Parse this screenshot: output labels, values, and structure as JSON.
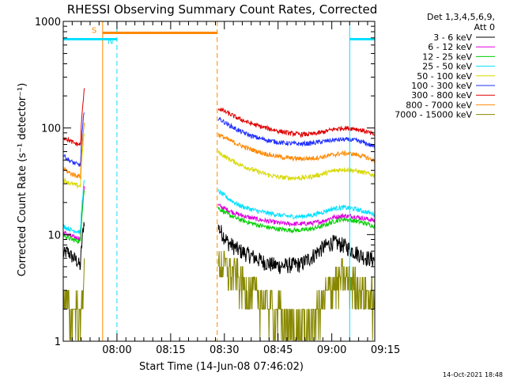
{
  "chart_data": {
    "type": "line",
    "title": "RHESSI Observing Summary Count Rates, Corrected",
    "ylabel": "Corrected Count Rate (s⁻¹ detector⁻¹)",
    "xlabel": "Start Time (14-Jun-08 07:46:02)",
    "footer": "14-Oct-2021 18:48",
    "yscale": "log",
    "ylim": [
      1,
      1000
    ],
    "y_ticks": [
      {
        "value": 1,
        "label": "1"
      },
      {
        "value": 10,
        "label": "10"
      },
      {
        "value": 100,
        "label": "100"
      },
      {
        "value": 1000,
        "label": "1000"
      }
    ],
    "xlim_min": [
      -7,
      80
    ],
    "x_ticks": [
      {
        "value": 8,
        "label": "08:00"
      },
      {
        "value": 23,
        "label": "08:15"
      },
      {
        "value": 38,
        "label": "08:30"
      },
      {
        "value": 53,
        "label": "08:45"
      },
      {
        "value": 68,
        "label": "09:00"
      },
      {
        "value": 83,
        "label": "09:15"
      }
    ],
    "legend_header": [
      "Det 1,3,4,5,6,9,",
      "Att 0"
    ],
    "series": [
      {
        "name": "3 - 6 keV",
        "color": "#000000",
        "pre": [
          6.5,
          7.0,
          6.2,
          5.8,
          5.0,
          4.6
        ],
        "post": [
          12,
          8.5,
          7.2,
          6.5,
          5.8,
          5.3,
          5.1,
          5.2,
          5.3,
          6.2,
          7.5,
          8.5,
          8.0,
          7.0,
          6.2,
          5.8
        ]
      },
      {
        "name": "6 - 12 keV",
        "color": "#e000e0",
        "pre": [
          10.5,
          10.0,
          9.6,
          9.4,
          9.2,
          9.5
        ],
        "post": [
          19,
          17,
          15.5,
          14.5,
          13.8,
          13.3,
          12.8,
          12.6,
          12.6,
          12.8,
          13.3,
          14.5,
          15,
          14.8,
          14.2,
          13.5
        ]
      },
      {
        "name": "12 - 25 keV",
        "color": "#00d000",
        "pre": [
          10.0,
          9.4,
          9.0,
          8.8,
          8.6,
          9.0
        ],
        "post": [
          18,
          15.5,
          14,
          13,
          12.2,
          11.6,
          11.2,
          11.0,
          11.0,
          11.3,
          12,
          13.2,
          14.0,
          13.5,
          12.8,
          12.0
        ]
      },
      {
        "name": "25 - 50 keV",
        "color": "#00e0ff",
        "pre": [
          12.0,
          11.5,
          11.0,
          10.8,
          10.6,
          11.0
        ],
        "post": [
          26,
          22,
          19,
          17.5,
          16.5,
          15.8,
          15.2,
          14.8,
          14.8,
          15.2,
          16.2,
          17.5,
          18.0,
          17.5,
          16.5,
          15.5
        ]
      },
      {
        "name": "50 - 100 keV",
        "color": "#d8d800",
        "pre": [
          33,
          31,
          30,
          29,
          28.5,
          31
        ],
        "post": [
          60,
          52,
          46,
          42,
          38.5,
          36,
          34.5,
          34,
          34,
          35,
          37,
          39.5,
          41,
          40,
          38,
          36
        ]
      },
      {
        "name": "100 - 300 keV",
        "color": "#2030ff",
        "pre": [
          56,
          51,
          48,
          46,
          45,
          50
        ],
        "post": [
          125,
          108,
          95,
          86,
          80,
          76,
          73,
          71.5,
          71,
          72,
          74.5,
          77,
          78,
          77,
          73,
          66
        ]
      },
      {
        "name": "300 - 800 keV",
        "color": "#e00000",
        "pre": [
          82,
          78,
          74,
          71,
          70,
          78
        ],
        "post": [
          155,
          138,
          123,
          112,
          104,
          98,
          93,
          89,
          87,
          87.5,
          91,
          97,
          100,
          99,
          94,
          86
        ]
      },
      {
        "name": "800 - 7000 keV",
        "color": "#ff8800",
        "pre": [
          42,
          39,
          37,
          36,
          35,
          39
        ],
        "post": [
          88,
          78,
          70,
          64,
          59.5,
          56,
          53.5,
          52,
          51.5,
          52,
          53.5,
          56,
          58,
          57,
          54,
          49
        ]
      },
      {
        "name": "7000 - 15000 keV",
        "color": "#888800",
        "pre": [
          2.5,
          1.9,
          1.7,
          1.9,
          1.5,
          1.4
        ],
        "post": [
          5.5,
          4.8,
          4.0,
          3.0,
          2.6,
          2.2,
          1.8,
          1.4,
          1.3,
          1.5,
          2.2,
          3.5,
          4.0,
          3.6,
          3.0,
          2.4
        ]
      }
    ],
    "gaps_min": [
      [
        -1,
        36
      ]
    ],
    "segment_bars": [
      {
        "label": "",
        "color": "#00e0ff",
        "start": -7,
        "end": 4,
        "y": 680
      },
      {
        "label": "S",
        "color": "#ff8800",
        "start": 4,
        "end": 36,
        "y": 780
      },
      {
        "label": "N",
        "color": "#00e0ff",
        "start": 4,
        "end": 8,
        "y": 680
      },
      {
        "label": "",
        "color": "#00e0ff",
        "start": 73,
        "end": 80,
        "y": 680
      }
    ],
    "vlines": [
      {
        "at": -7,
        "color": "#00e0ff",
        "dash": false
      },
      {
        "at": 4,
        "color": "#ff8800",
        "dash": false
      },
      {
        "at": 8,
        "color": "#00e0ff",
        "dash": true
      },
      {
        "at": 36,
        "color": "#ff8800",
        "dash": true
      },
      {
        "at": 73,
        "color": "#00e0ff",
        "dash": false
      },
      {
        "at": 80,
        "color": "#00e0ff",
        "dash": true
      }
    ]
  }
}
